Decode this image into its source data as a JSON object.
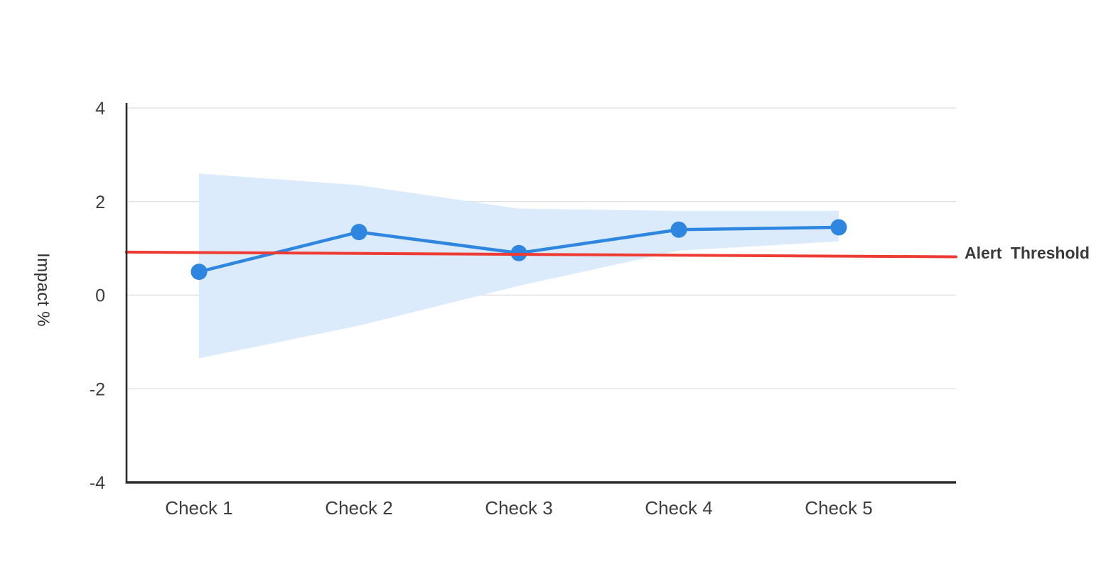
{
  "chart_data": {
    "type": "line",
    "title": "",
    "categories": [
      "Check 1",
      "Check 2",
      "Check 3",
      "Check 4",
      "Check 5"
    ],
    "series": [
      {
        "name": "Impact",
        "type": "line-with-markers",
        "values": [
          0.5,
          1.35,
          0.9,
          1.4,
          1.45
        ]
      },
      {
        "name": "Confidence band",
        "type": "area-band",
        "upper": [
          2.6,
          2.35,
          1.85,
          1.8,
          1.8
        ],
        "lower": [
          -1.35,
          -0.65,
          0.2,
          0.95,
          1.15
        ]
      }
    ],
    "threshold": {
      "label": "Alert Threshold",
      "start_value": 0.92,
      "end_value": 0.82
    },
    "xlabel": "",
    "ylabel": "Impact %",
    "ylim": [
      -4,
      4
    ],
    "yticks": [
      4,
      2,
      0,
      -2,
      -4
    ],
    "ytick_labels": [
      "4",
      "2",
      "0",
      "-2",
      "-4"
    ],
    "grid": "horizontal",
    "legend": "none"
  },
  "colors": {
    "line": "#2e86e0",
    "marker": "#2e86e0",
    "band": "#dcebfc",
    "threshold": "#ee3b33",
    "axis": "#2b2b2b",
    "grid": "#e3e3e3",
    "tick_text": "#3d3d3d",
    "background": "#ffffff"
  }
}
